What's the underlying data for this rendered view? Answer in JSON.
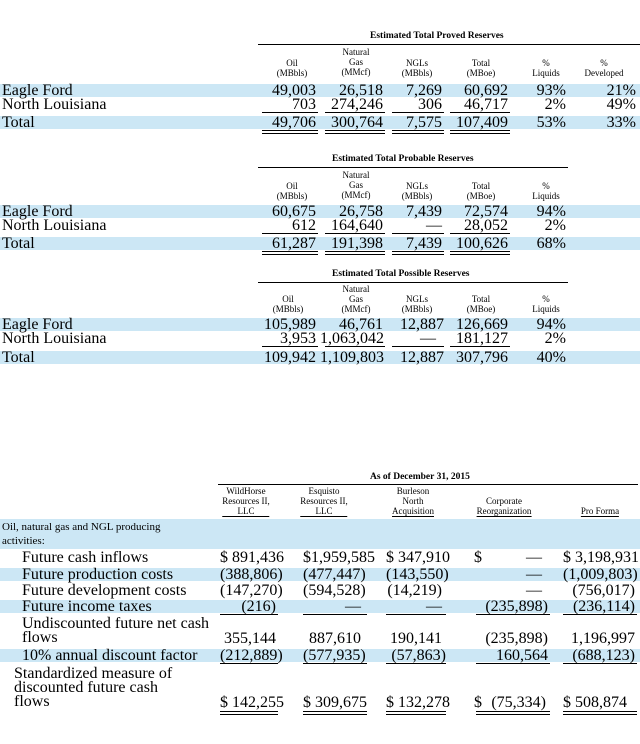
{
  "proved": {
    "title": "Estimated Total Proved Reserves",
    "headers": [
      "Oil\n(MBbls)",
      "Natural\nGas\n(MMcf)",
      "NGLs\n(MBbls)",
      "Total\n(MBoe)",
      "%\nLiquids",
      "%\nDeveloped"
    ],
    "rows": [
      {
        "label": "Eagle Ford",
        "vals": [
          "49,003",
          "26,518",
          "7,269",
          "60,692",
          "93%",
          "21%"
        ]
      },
      {
        "label": "North Louisiana",
        "vals": [
          "703",
          "274,246",
          "306",
          "46,717",
          "2%",
          "49%"
        ]
      },
      {
        "label": "Total",
        "vals": [
          "49,706",
          "300,764",
          "7,575",
          "107,409",
          "53%",
          "33%"
        ]
      }
    ]
  },
  "probable": {
    "title": "Estimated Total Probable Reserves",
    "headers": [
      "Oil\n(MBbls)",
      "Natural\nGas\n(MMcf)",
      "NGLs\n(MBbls)",
      "Total\n(MBoe)",
      "%\nLiquids"
    ],
    "rows": [
      {
        "label": "Eagle Ford",
        "vals": [
          "60,675",
          "26,758",
          "7,439",
          "72,574",
          "94%"
        ]
      },
      {
        "label": "North Louisiana",
        "vals": [
          "612",
          "164,640",
          "—",
          "28,052",
          "2%"
        ]
      },
      {
        "label": "Total",
        "vals": [
          "61,287",
          "191,398",
          "7,439",
          "100,626",
          "68%"
        ]
      }
    ]
  },
  "possible": {
    "title": "Estimated Total Possible Reserves",
    "headers": [
      "Oil\n(MBbls)",
      "Natural\nGas\n(MMcf)",
      "NGLs\n(MBbls)",
      "Total\n(MBoe)",
      "%\nLiquids"
    ],
    "rows": [
      {
        "label": "Eagle Ford",
        "vals": [
          "105,989",
          "46,761",
          "12,887",
          "126,669",
          "94%"
        ]
      },
      {
        "label": "North Louisiana",
        "vals": [
          "3,953",
          "1,063,042",
          "—",
          "181,127",
          "2%"
        ]
      },
      {
        "label": "Total",
        "vals": [
          "109,942",
          "1,109,803",
          "12,887",
          "307,796",
          "40%"
        ]
      }
    ]
  },
  "cashflow": {
    "title": "As of December 31, 2015",
    "headers": [
      "WildHorse\nResources II,\nLLC",
      "Esquisto\nResources II,\nLLC",
      "Burleson\nNorth\nAcquisition",
      "Corporate\nReorganization",
      "Pro Forma"
    ],
    "section_label": "Oil, natural gas and NGL producing\nactivities:",
    "rows": [
      {
        "label": "Future cash inflows",
        "vals": [
          "$ 891,436",
          "$1,959,585",
          "$ 347,910",
          "$",
          "—",
          "$ 3,198,931"
        ]
      },
      {
        "label": "Future production costs",
        "vals": [
          "(388,806)",
          "(477,447)",
          "(143,550)",
          "",
          "—",
          "(1,009,803)"
        ]
      },
      {
        "label": "Future development costs",
        "vals": [
          "(147,270)",
          "(594,528)",
          "(14,219)",
          "",
          "—",
          "(756,017)"
        ]
      },
      {
        "label": "Future income taxes",
        "vals": [
          "(216)",
          "—",
          "—",
          "",
          "(235,898)",
          "(236,114)"
        ]
      },
      {
        "label": "Undiscounted future net cash\nflows",
        "vals": [
          "355,144",
          "887,610",
          "190,141",
          "",
          "(235,898)",
          "1,196,997"
        ]
      },
      {
        "label": "10% annual discount factor",
        "vals": [
          "(212,889)",
          "(577,935)",
          "(57,863)",
          "",
          "160,564",
          "(688,123)"
        ]
      },
      {
        "label": "Standardized measure of\ndiscounted future cash\nflows",
        "vals": [
          "$ 142,255",
          "$ 309,675",
          "$ 132,278",
          "$",
          "(75,334)",
          "$ 508,874"
        ]
      }
    ]
  }
}
